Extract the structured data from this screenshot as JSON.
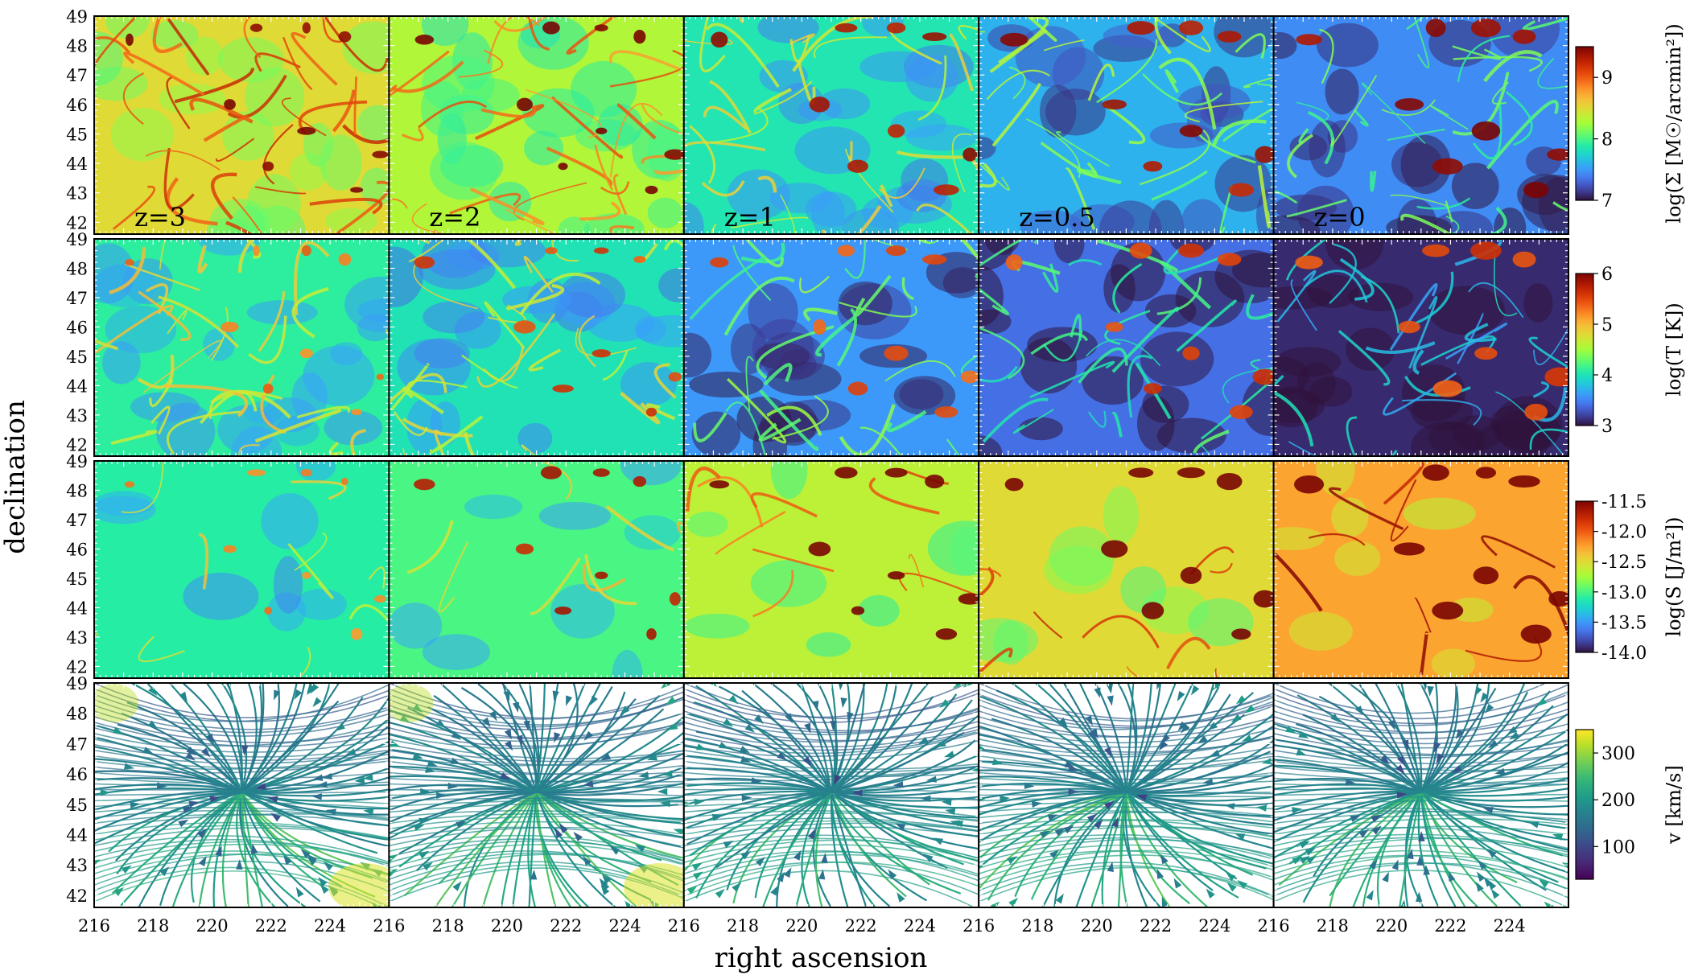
{
  "figure": {
    "xlabel": "right ascension",
    "ylabel": "declination"
  },
  "chart_data": {
    "type": "heatmap",
    "layout": "4x5 grid of maps; rows = quantities, columns = redshift snapshots",
    "columns": [
      {
        "label": "z=3"
      },
      {
        "label": "z=2"
      },
      {
        "label": "z=1"
      },
      {
        "label": "z=0.5"
      },
      {
        "label": "z=0"
      }
    ],
    "xlim": [
      216,
      226
    ],
    "ylim": [
      41.6,
      49
    ],
    "x_ticks": [
      216,
      218,
      220,
      222,
      224
    ],
    "y_ticks": [
      42,
      43,
      44,
      45,
      46,
      47,
      48,
      49
    ],
    "rows": [
      {
        "quantity": "surface density",
        "colorbar_label": "log(Σ [M☉/arcmin²])",
        "colormap": "turbo",
        "vmin": 7,
        "vmax": 9.5,
        "colorbar_ticks": [
          "7",
          "8",
          "9"
        ],
        "colorbar_values": [
          7,
          8,
          9
        ],
        "median_level_by_column": [
          8.5,
          8.3,
          7.85,
          7.6,
          7.45
        ]
      },
      {
        "quantity": "temperature",
        "colorbar_label": "log(T [K])",
        "colormap": "turbo",
        "vmin": 3,
        "vmax": 6,
        "colorbar_ticks": [
          "3",
          "4",
          "5",
          "6"
        ],
        "colorbar_values": [
          3,
          4,
          5,
          6
        ],
        "median_level_by_column": [
          4.1,
          4.0,
          3.6,
          3.4,
          3.1
        ]
      },
      {
        "quantity": "entropy",
        "colorbar_label": "log(S [J/m²])",
        "colormap": "turbo",
        "vmin": -14.0,
        "vmax": -11.5,
        "colorbar_ticks": [
          "-11.5",
          "-12.0",
          "-12.5",
          "-13.0",
          "-13.5",
          "-14.0"
        ],
        "colorbar_values": [
          -11.5,
          -12.0,
          -12.5,
          -13.0,
          -13.5,
          -14.0
        ],
        "median_level_by_column": [
          -13.1,
          -13.0,
          -12.65,
          -12.5,
          -12.25
        ]
      },
      {
        "quantity": "velocity streamlines",
        "colorbar_label": "v [km/s]",
        "colormap": "viridis",
        "vmin": 30,
        "vmax": 350,
        "colorbar_ticks": [
          "100",
          "200",
          "300"
        ],
        "colorbar_values": [
          100,
          200,
          300
        ],
        "flow_center": {
          "ra": 221,
          "dec": 45.4
        }
      }
    ]
  },
  "colors": {
    "frame": "#000000",
    "tick_inner": "#ffffff",
    "streamline": "#ffffff"
  }
}
